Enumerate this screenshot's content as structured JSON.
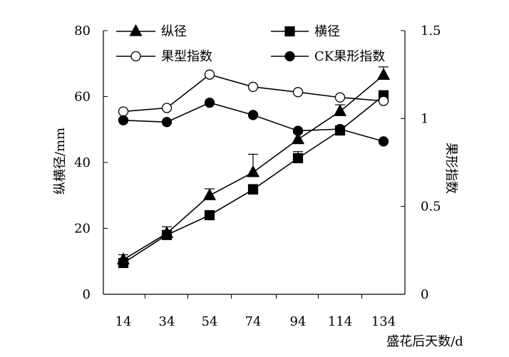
{
  "chart_data": {
    "type": "line",
    "xlabel": "盛花后天数/d",
    "ylabel": "纵横径/mm",
    "y2label": "果形指数",
    "categories": [
      14,
      34,
      54,
      74,
      94,
      114,
      134
    ],
    "ylim": [
      0,
      80
    ],
    "y2lim": [
      0,
      1.5
    ],
    "yticks": [
      0,
      20,
      40,
      60,
      80
    ],
    "y2ticks": [
      0,
      0.5,
      1,
      1.5
    ],
    "grid": false,
    "legend_position": "top",
    "series": [
      {
        "name": "纵径",
        "axis": "left",
        "marker": "triangle",
        "filled": true,
        "values": [
          10.5,
          18.5,
          30,
          37,
          47,
          55.5,
          66.5
        ],
        "errors": [
          1.5,
          2,
          2,
          5.5,
          2,
          2,
          2.5
        ]
      },
      {
        "name": "横径",
        "axis": "left",
        "marker": "square",
        "filled": true,
        "values": [
          9.5,
          18,
          24,
          31.8,
          41.3,
          49.7,
          60.3
        ],
        "errors": [
          1,
          1,
          1,
          1.5,
          2,
          1.2,
          1.5
        ]
      },
      {
        "name": "果型指数",
        "axis": "right",
        "marker": "circle",
        "filled": false,
        "values": [
          1.04,
          1.06,
          1.25,
          1.18,
          1.15,
          1.12,
          1.1
        ]
      },
      {
        "name": "CK果形指数",
        "axis": "right",
        "marker": "circle",
        "filled": true,
        "values": [
          0.99,
          0.98,
          1.09,
          1.02,
          0.93,
          0.94,
          0.87
        ]
      }
    ]
  }
}
